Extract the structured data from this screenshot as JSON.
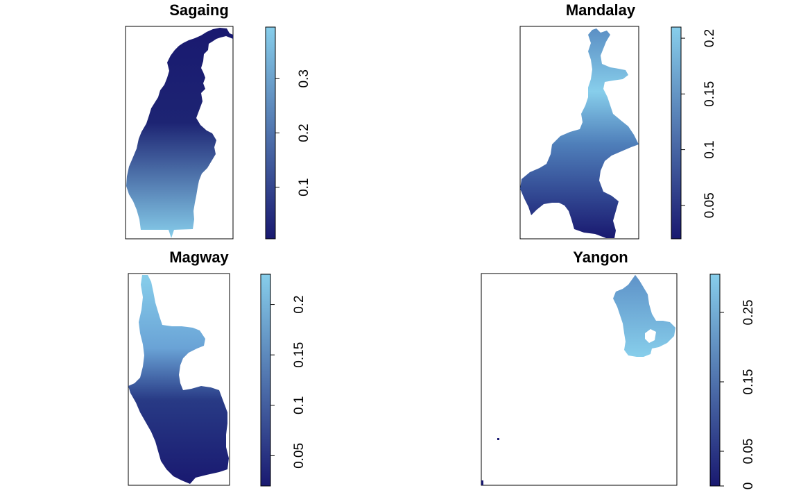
{
  "colors": {
    "low": "#191970",
    "high": "#87CEEB"
  },
  "panels": [
    {
      "id": "sagaing",
      "title": "Sagaing",
      "legend_range": [
        0.005,
        0.395
      ],
      "ticks": [
        {
          "value": 0.1,
          "label": "0.1"
        },
        {
          "value": 0.2,
          "label": "0.2"
        },
        {
          "value": 0.3,
          "label": "0.3"
        }
      ]
    },
    {
      "id": "mandalay",
      "title": "Mandalay",
      "legend_range": [
        0.02,
        0.21
      ],
      "ticks": [
        {
          "value": 0.05,
          "label": "0.05"
        },
        {
          "value": 0.1,
          "label": "0.1"
        },
        {
          "value": 0.15,
          "label": "0.15"
        },
        {
          "value": 0.2,
          "label": "0.2"
        }
      ]
    },
    {
      "id": "magway",
      "title": "Magway",
      "legend_range": [
        0.02,
        0.23
      ],
      "ticks": [
        {
          "value": 0.05,
          "label": "0.05"
        },
        {
          "value": 0.1,
          "label": "0.1"
        },
        {
          "value": 0.15,
          "label": "0.15"
        },
        {
          "value": 0.2,
          "label": "0.2"
        }
      ]
    },
    {
      "id": "yangon",
      "title": "Yangon",
      "legend_range": [
        0.0,
        0.305
      ],
      "ticks": [
        {
          "value": 0,
          "label": "0"
        },
        {
          "value": 0.05,
          "label": "0.05"
        },
        {
          "value": 0.15,
          "label": "0.15"
        },
        {
          "value": 0.25,
          "label": "0.25"
        }
      ]
    }
  ]
}
